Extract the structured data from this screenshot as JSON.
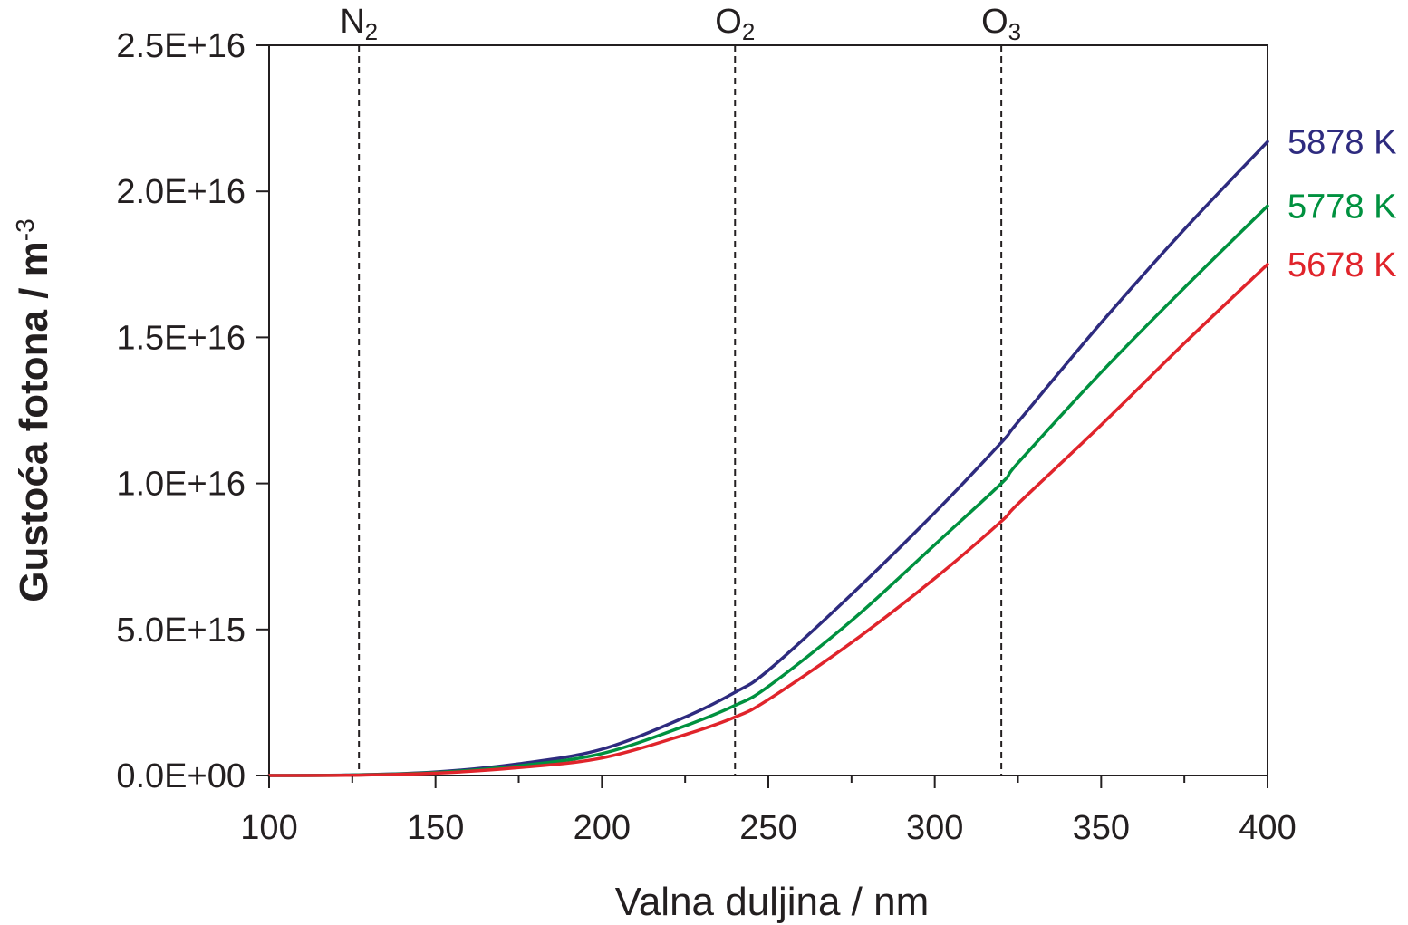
{
  "chart_data": {
    "type": "line",
    "title": "",
    "xlabel": "Valna duljina / nm",
    "ylabel": {
      "main": "Gustoća fotona / m",
      "sup": "-3"
    },
    "xlim": [
      100,
      400
    ],
    "ylim": [
      0,
      2.5e+16
    ],
    "x_ticks": [
      100,
      150,
      200,
      250,
      300,
      350,
      400
    ],
    "x_tick_labels": [
      "100",
      "150",
      "200",
      "250",
      "300",
      "350",
      "400"
    ],
    "y_ticks": [
      0,
      5000000000000000.0,
      1e+16,
      1.5e+16,
      2e+16,
      2.5e+16
    ],
    "y_tick_labels": [
      "0.0E+00",
      "5.0E+15",
      "1.0E+16",
      "1.5E+16",
      "2.0E+16",
      "2.5E+16"
    ],
    "grid": false,
    "legend": "labels at right end of each line",
    "markers": [
      {
        "x": 127,
        "base": "N",
        "sub": "2"
      },
      {
        "x": 240,
        "base": "O",
        "sub": "2"
      },
      {
        "x": 320,
        "base": "O",
        "sub": "3"
      }
    ],
    "series": [
      {
        "name": "5878 K",
        "color": "#2e2b7f",
        "x": [
          100,
          125,
          150,
          175,
          200,
          225,
          240,
          250,
          275,
          300,
          320,
          325,
          350,
          375,
          400
        ],
        "values": [
          0,
          20000000000000.0,
          120000000000000.0,
          400000000000000.0,
          900000000000000.0,
          2000000000000000.0,
          2850000000000000.0,
          3600000000000000.0,
          6200000000000000.0,
          9000000000000000.0,
          1.14e+16,
          1.21e+16,
          1.55e+16,
          1.87e+16,
          2.17e+16
        ]
      },
      {
        "name": "5778 K",
        "color": "#00913f",
        "x": [
          100,
          125,
          150,
          175,
          200,
          225,
          240,
          250,
          275,
          300,
          320,
          325,
          350,
          375,
          400
        ],
        "values": [
          0,
          15000000000000.0,
          100000000000000.0,
          330000000000000.0,
          750000000000000.0,
          1700000000000000.0,
          2400000000000000.0,
          3050000000000000.0,
          5300000000000000.0,
          7900000000000000.0,
          1e+16,
          1.07e+16,
          1.38e+16,
          1.67e+16,
          1.95e+16
        ]
      },
      {
        "name": "5678 K",
        "color": "#e0242b",
        "x": [
          100,
          125,
          150,
          175,
          200,
          225,
          240,
          250,
          275,
          300,
          320,
          325,
          350,
          375,
          400
        ],
        "values": [
          0,
          10000000000000.0,
          80000000000000.0,
          270000000000000.0,
          600000000000000.0,
          1400000000000000.0,
          2000000000000000.0,
          2600000000000000.0,
          4550000000000000.0,
          6750000000000000.0,
          8700000000000000.0,
          9300000000000000.0,
          1.2e+16,
          1.48e+16,
          1.75e+16
        ]
      }
    ]
  }
}
